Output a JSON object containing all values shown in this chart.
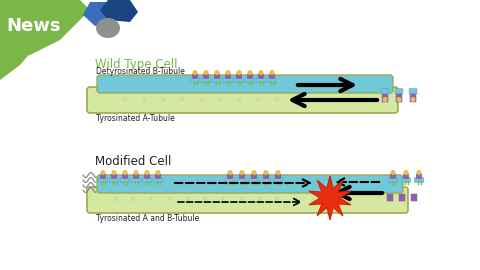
{
  "bg_color": "#ffffff",
  "green_color": "#7ab648",
  "news_text": "News",
  "wt_title": "Wild Type Cell",
  "mod_title": "Modified Cell",
  "wt_label_top": "Detyrosinated B-Tubule",
  "wt_label_bot": "Tyrosinated A-Tubule",
  "mod_label_bot": "Tyrosinated A and B-Tubule",
  "tubule_yg": "#d4e8a0",
  "tubule_border": "#9aaa50",
  "cyan_color": "#70c8d8",
  "cyan_dark": "#50aabc",
  "purple_color": "#9060b0",
  "yellow_color": "#e8c040",
  "green_base": "#80b840",
  "red_star_color": "#e83010",
  "dark_blue": "#2a5090",
  "mid_blue": "#4472c4",
  "gray_col": "#909090"
}
